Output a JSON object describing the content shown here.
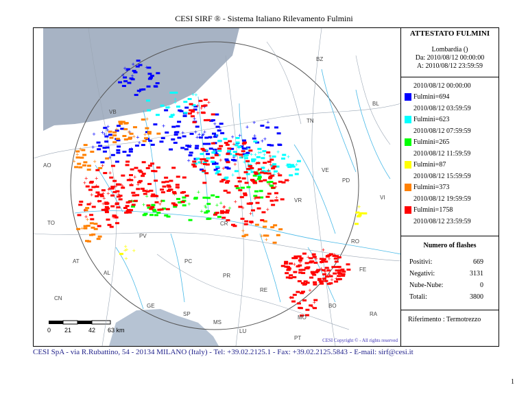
{
  "header": {
    "title": "CESI SIRF ® - Sistema Italiano Rilevamento Fulmini"
  },
  "panel": {
    "attestato_title": "ATTESTATO FULMINI",
    "region": "Lombardia ()",
    "from": "Da: 2010/08/12 00:00:00",
    "to": "A: 2010/08/12 23:59:59",
    "legend": [
      {
        "start": "2010/08/12 00:00:00",
        "label": "Fulmini=694",
        "color": "#0000ff"
      },
      {
        "start": "2010/08/12 03:59:59",
        "label": "Fulmini=623",
        "color": "#00ffff"
      },
      {
        "start": "2010/08/12 07:59:59",
        "label": "Fulmini=265",
        "color": "#00ff00"
      },
      {
        "start": "2010/08/12 11:59:59",
        "label": "Fulmini=87",
        "color": "#ffff00"
      },
      {
        "start": "2010/08/12 15:59:59",
        "label": "Fulmini=373",
        "color": "#ff8000"
      },
      {
        "start": "2010/08/12 19:59:59",
        "label": "Fulmini=1758",
        "color": "#ff0000"
      }
    ],
    "legend_end": "2010/08/12 23:59:59",
    "flashes_title": "Numero of flashes",
    "flashes": [
      {
        "label": "Positivi:",
        "value": "669"
      },
      {
        "label": "Negativi:",
        "value": "3131"
      },
      {
        "label": "Nube-Nube:",
        "value": "0"
      },
      {
        "label": "Totali:",
        "value": "3800"
      }
    ],
    "riferimento": "Riferimento : Termotrezzo"
  },
  "map": {
    "copyright": "CESI Copyright © - All rights reserved",
    "scale_labels": [
      "0",
      "21",
      "42",
      "63 km"
    ],
    "province_labels": [
      "BZ",
      "BL",
      "TN",
      "AO",
      "VB",
      "VE",
      "TO",
      "VR",
      "PD",
      "RO",
      "PV",
      "CR",
      "AT",
      "PC",
      "FE",
      "PR",
      "RE",
      "GE",
      "MO",
      "BO",
      "SP",
      "MS",
      "LU",
      "PT",
      "RA",
      "CN",
      "AL",
      "VI"
    ],
    "sea_color": "#b6c3d3",
    "swiss_color": "#a7b3c4"
  },
  "footer": {
    "text": "CESI SpA - via R.Rubattino, 54 - 20134 MILANO (Italy) - Tel: +39.02.2125.1 - Fax: +39.02.2125.5843 - E-mail: sirf@cesi.it"
  },
  "page_number": "1"
}
